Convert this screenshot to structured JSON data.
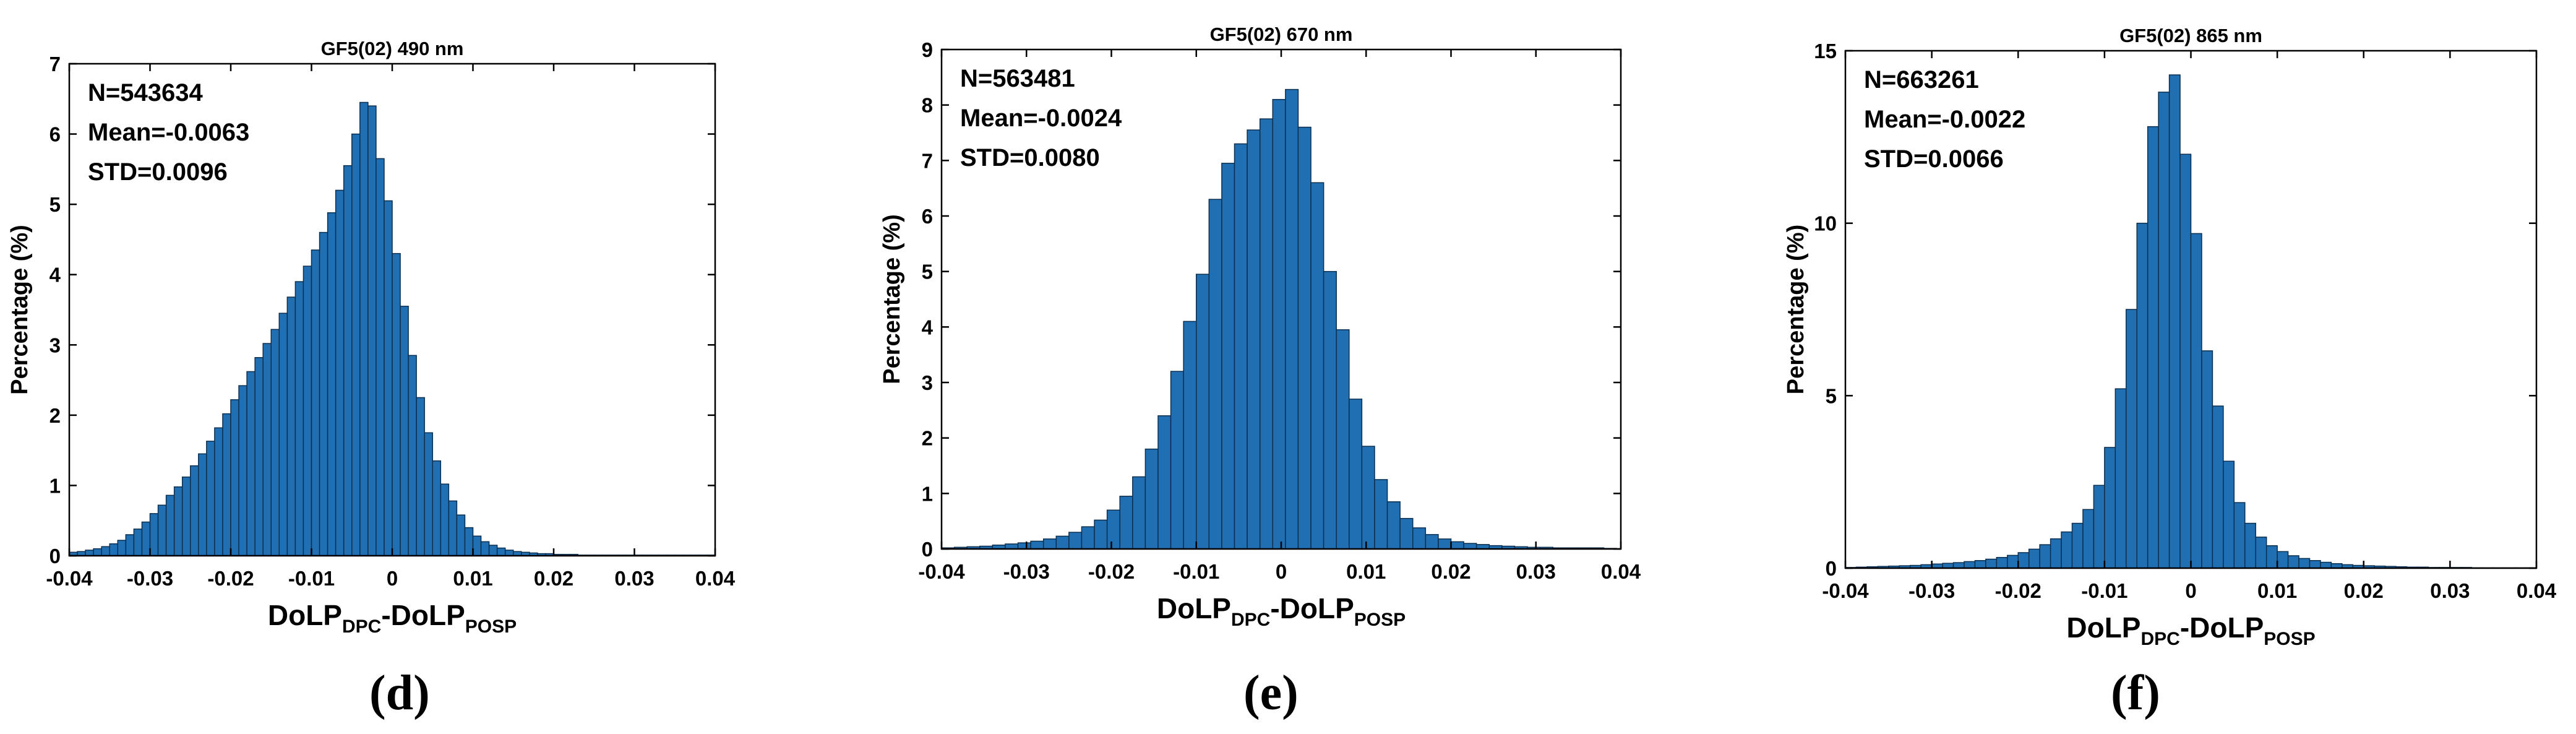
{
  "figure": {
    "panel_labels": [
      "(d)",
      "(e)",
      "(f)"
    ]
  },
  "style": {
    "bar_color": "#1f6fb2",
    "bar_edge": "#0d2f4f",
    "axis_color": "#000000"
  },
  "chart_data": [
    {
      "type": "bar",
      "title": "GF5(02) 490 nm",
      "xlabel": "DoLP",
      "xlabel_sub1": "DPC",
      "xlabel_mid": "-DoLP",
      "xlabel_sub2": "POSP",
      "ylabel": "Percentage (%)",
      "xlim": [
        -0.04,
        0.04
      ],
      "ylim": [
        0,
        7
      ],
      "xticks": [
        -0.04,
        -0.03,
        -0.02,
        -0.01,
        0,
        0.01,
        0.02,
        0.03,
        0.04
      ],
      "xtick_labels": [
        "-0.04",
        "-0.03",
        "-0.02",
        "-0.01",
        "0",
        "0.01",
        "0.02",
        "0.03",
        "0.04"
      ],
      "yticks": [
        0,
        1,
        2,
        3,
        4,
        5,
        6,
        7
      ],
      "ytick_labels": [
        "0",
        "1",
        "2",
        "3",
        "4",
        "5",
        "6",
        "7"
      ],
      "stats": [
        "N=543634",
        "Mean=-0.0063",
        "STD=0.0096"
      ],
      "bin_start": -0.04,
      "bin_width": 0.001,
      "values": [
        0.05,
        0.06,
        0.08,
        0.1,
        0.13,
        0.17,
        0.22,
        0.3,
        0.38,
        0.48,
        0.6,
        0.72,
        0.86,
        0.98,
        1.12,
        1.28,
        1.45,
        1.63,
        1.82,
        2.02,
        2.22,
        2.42,
        2.62,
        2.82,
        3.02,
        3.22,
        3.45,
        3.68,
        3.9,
        4.12,
        4.35,
        4.6,
        4.88,
        5.2,
        5.55,
        6.0,
        6.45,
        6.4,
        5.65,
        5.05,
        4.3,
        3.55,
        2.85,
        2.25,
        1.75,
        1.35,
        1.02,
        0.78,
        0.58,
        0.4,
        0.28,
        0.2,
        0.15,
        0.11,
        0.08,
        0.06,
        0.05,
        0.04,
        0.03,
        0.03,
        0.02,
        0.02,
        0.02,
        0.01,
        0.01,
        0.01,
        0.01,
        0.01,
        0.01,
        0.01,
        0.01,
        0.01,
        0.01,
        0.01,
        0.01,
        0.01,
        0.01,
        0.01,
        0.01,
        0.01
      ]
    },
    {
      "type": "bar",
      "title": "GF5(02) 670 nm",
      "xlabel": "DoLP",
      "xlabel_sub1": "DPC",
      "xlabel_mid": "-DoLP",
      "xlabel_sub2": "POSP",
      "ylabel": "Percentage (%)",
      "xlim": [
        -0.04,
        0.04
      ],
      "ylim": [
        0,
        9
      ],
      "xticks": [
        -0.04,
        -0.03,
        -0.02,
        -0.01,
        0,
        0.01,
        0.02,
        0.03,
        0.04
      ],
      "xtick_labels": [
        "-0.04",
        "-0.03",
        "-0.02",
        "-0.01",
        "0",
        "0.01",
        "0.02",
        "0.03",
        "0.04"
      ],
      "yticks": [
        0,
        1,
        2,
        3,
        4,
        5,
        6,
        7,
        8,
        9
      ],
      "ytick_labels": [
        "0",
        "1",
        "2",
        "3",
        "4",
        "5",
        "6",
        "7",
        "8",
        "9"
      ],
      "stats": [
        "N=563481",
        "Mean=-0.0024",
        "STD=0.0080"
      ],
      "bin_start": -0.04,
      "bin_width": 0.0015,
      "values": [
        0.02,
        0.03,
        0.04,
        0.05,
        0.07,
        0.09,
        0.11,
        0.14,
        0.18,
        0.23,
        0.3,
        0.4,
        0.52,
        0.7,
        0.95,
        1.3,
        1.8,
        2.4,
        3.2,
        4.1,
        4.95,
        6.3,
        6.95,
        7.3,
        7.55,
        7.75,
        8.1,
        8.28,
        7.6,
        6.6,
        5.0,
        3.95,
        2.7,
        1.85,
        1.25,
        0.85,
        0.55,
        0.38,
        0.26,
        0.18,
        0.13,
        0.1,
        0.08,
        0.06,
        0.05,
        0.04,
        0.03,
        0.03,
        0.02,
        0.02,
        0.02,
        0.02,
        0.01
      ]
    },
    {
      "type": "bar",
      "title": "GF5(02) 865 nm",
      "xlabel": "DoLP",
      "xlabel_sub1": "DPC",
      "xlabel_mid": "-DoLP",
      "xlabel_sub2": "POSP",
      "ylabel": "Percentage (%)",
      "xlim": [
        -0.04,
        0.04
      ],
      "ylim": [
        0,
        15
      ],
      "xticks": [
        -0.04,
        -0.03,
        -0.02,
        -0.01,
        0,
        0.01,
        0.02,
        0.03,
        0.04
      ],
      "xtick_labels": [
        "-0.04",
        "-0.03",
        "-0.02",
        "-0.01",
        "0",
        "0.01",
        "0.02",
        "0.03",
        "0.04"
      ],
      "yticks": [
        0,
        5,
        10,
        15
      ],
      "ytick_labels": [
        "0",
        "5",
        "10",
        "15"
      ],
      "stats": [
        "N=663261",
        "Mean=-0.0022",
        "STD=0.0066"
      ],
      "bin_start": -0.04,
      "bin_width": 0.00125,
      "values": [
        0.02,
        0.03,
        0.04,
        0.05,
        0.06,
        0.07,
        0.08,
        0.1,
        0.12,
        0.14,
        0.16,
        0.19,
        0.22,
        0.26,
        0.31,
        0.37,
        0.45,
        0.55,
        0.68,
        0.85,
        1.05,
        1.3,
        1.7,
        2.4,
        3.5,
        5.2,
        7.5,
        10.0,
        12.8,
        13.8,
        14.3,
        12.0,
        9.7,
        6.3,
        4.7,
        3.1,
        1.9,
        1.3,
        0.9,
        0.65,
        0.48,
        0.36,
        0.28,
        0.22,
        0.17,
        0.13,
        0.1,
        0.08,
        0.07,
        0.06,
        0.05,
        0.04,
        0.03,
        0.03,
        0.02,
        0.02,
        0.02,
        0.02,
        0.01,
        0.01,
        0.01,
        0.01,
        0.01,
        0.01
      ]
    }
  ]
}
